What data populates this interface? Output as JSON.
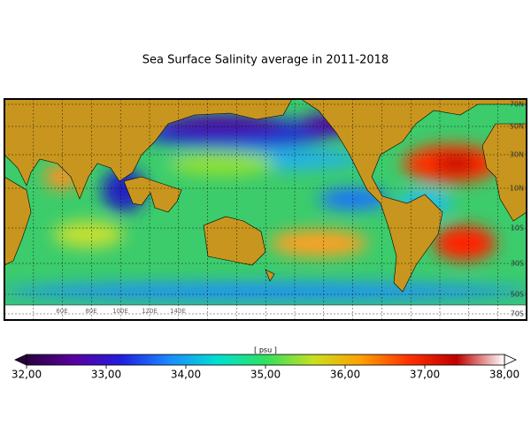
{
  "title": "Sea Surface Salinity average in 2011-2018",
  "map": {
    "lat_labels": [
      "70N",
      "50N",
      "30N",
      "10N",
      "10S",
      "30S",
      "50S",
      "70S"
    ],
    "lon_labels": [
      "60E",
      "80E",
      "100E",
      "120E",
      "140E"
    ]
  },
  "colorbar": {
    "label": "[ psu ]",
    "range": [
      32,
      38
    ],
    "colormap": [
      "#2a0040",
      "#5a00a0",
      "#2020e0",
      "#1a8cff",
      "#00e0d0",
      "#30e060",
      "#c8e020",
      "#ffa000",
      "#ff3000",
      "#c00000",
      "#ffffff"
    ],
    "ticks": [
      {
        "value": 32,
        "label": "32,00"
      },
      {
        "value": 33,
        "label": "33,00"
      },
      {
        "value": 34,
        "label": "34,00"
      },
      {
        "value": 35,
        "label": "35,00"
      },
      {
        "value": 36,
        "label": "36,00"
      },
      {
        "value": 37,
        "label": "37,00"
      },
      {
        "value": 38,
        "label": "38,00"
      }
    ]
  }
}
